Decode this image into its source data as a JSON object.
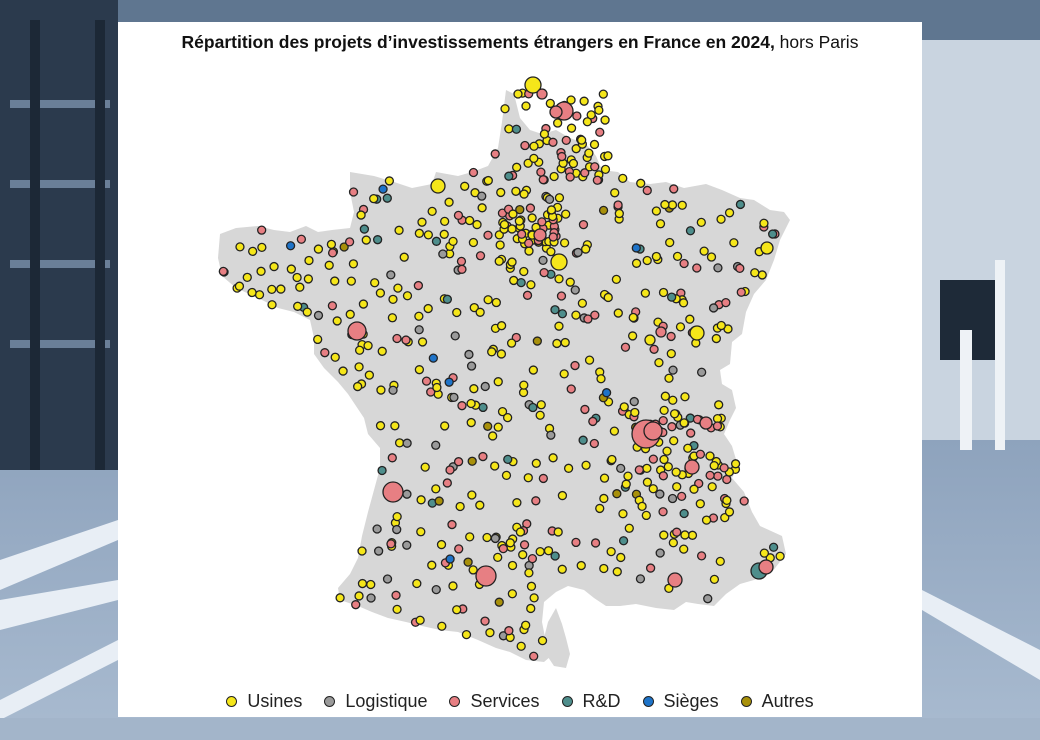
{
  "title": {
    "bold": "Répartition des projets d’investissements étrangers en France en 2024,",
    "regular": " hors Paris"
  },
  "legend": [
    {
      "label": "Usines",
      "color": "#f5e61a"
    },
    {
      "label": "Logistique",
      "color": "#9a9a9a"
    },
    {
      "label": "Services",
      "color": "#e77f83"
    },
    {
      "label": "R&D",
      "color": "#4e8e8c"
    },
    {
      "label": "Sièges",
      "color": "#1e73c8"
    },
    {
      "label": "Autres",
      "color": "#a8900a"
    }
  ],
  "map": {
    "land_color": "#d7d7d7",
    "marker_stroke": "#222222"
  }
}
